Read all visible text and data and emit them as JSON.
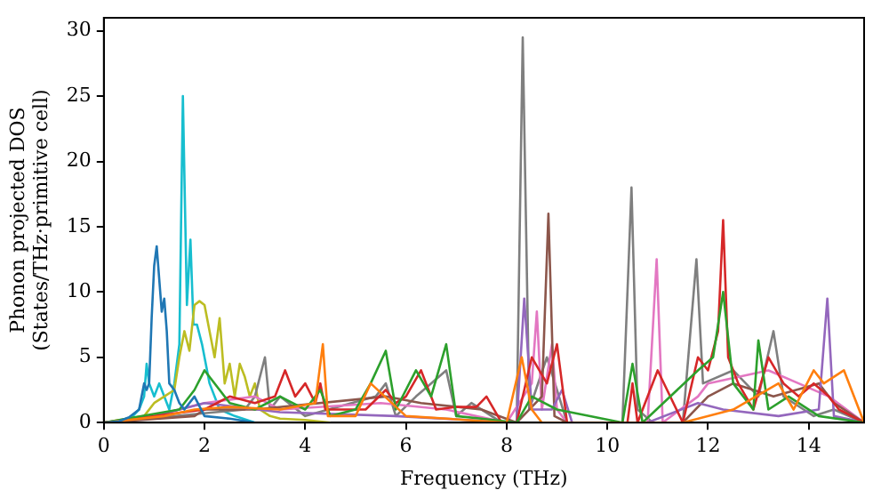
{
  "chart_data": {
    "type": "line",
    "xlabel": "Frequency (THz)",
    "ylabel": "Phonon projected DOS\n(States/THz·primitive cell)",
    "xlim": [
      0,
      15.1
    ],
    "xticks": [
      0,
      2,
      4,
      6,
      8,
      10,
      12,
      14
    ],
    "ylim": [
      0,
      31
    ],
    "yticks": [
      0,
      5,
      10,
      15,
      20,
      25,
      30
    ],
    "grid": false,
    "legend": false,
    "marker": "none",
    "line_style": "solid",
    "series": [
      {
        "color": "#1f77b4",
        "x": [
          0,
          0.3,
          0.5,
          0.7,
          0.8,
          0.85,
          0.9,
          0.95,
          1.0,
          1.05,
          1.1,
          1.15,
          1.2,
          1.25,
          1.3,
          1.4,
          1.5,
          1.6,
          1.8,
          2.0,
          2.5,
          3.0
        ],
        "values": [
          0,
          0.1,
          0.4,
          1,
          3,
          2.5,
          3,
          8,
          12,
          13.5,
          11,
          8.5,
          9.5,
          7,
          3,
          2.5,
          1.5,
          1,
          2,
          0.5,
          0.3,
          0
        ]
      },
      {
        "color": "#ff7f0e",
        "x": [
          0,
          1.2,
          1.8,
          2.5,
          3.5,
          4.2,
          4.35,
          4.45,
          5,
          5.3,
          6,
          8,
          8.3,
          8.5,
          8.7,
          11.5,
          12.5,
          13.4,
          13.7,
          14.1,
          14.3,
          14.7,
          15.1
        ],
        "values": [
          0,
          0.5,
          1,
          1.2,
          1,
          1.5,
          6,
          0.5,
          0.5,
          3,
          0.5,
          0,
          5,
          1,
          0,
          0,
          1,
          3,
          1,
          4,
          3,
          4,
          0
        ]
      },
      {
        "color": "#2ca02c",
        "x": [
          0,
          1.5,
          1.8,
          2.0,
          2.5,
          3.0,
          3.5,
          4,
          4.3,
          4.5,
          5.0,
          5.3,
          5.6,
          5.8,
          6.2,
          6.5,
          6.8,
          7.0,
          7.5,
          8.2,
          8.5,
          9.0,
          10.3,
          10.5,
          10.7,
          11.8,
          12.1,
          12.3,
          12.5,
          12.9,
          13.0,
          13.2,
          13.6,
          14.2,
          15.1
        ],
        "values": [
          0,
          1,
          2.5,
          4,
          1.5,
          1,
          2,
          1,
          2.5,
          0.5,
          1,
          3,
          5.5,
          1,
          4,
          2,
          6,
          0.5,
          0.3,
          0,
          2,
          1,
          0,
          4.5,
          0,
          4,
          5,
          10,
          3,
          1,
          6.3,
          1,
          2,
          0.5,
          0
        ]
      },
      {
        "color": "#d62728",
        "x": [
          0,
          2.0,
          2.5,
          3.0,
          3.4,
          3.6,
          3.8,
          4.0,
          4.2,
          4.3,
          4.4,
          4.6,
          5.0,
          5.2,
          5.6,
          5.8,
          6.0,
          6.3,
          6.6,
          7.0,
          7.4,
          7.6,
          7.9,
          8.2,
          8.5,
          8.8,
          9.0,
          9.2,
          10.4,
          10.5,
          10.6,
          11.0,
          11.5,
          11.8,
          12.0,
          12.2,
          12.3,
          12.4,
          12.6,
          12.9,
          13.2,
          13.5,
          13.8,
          14.1,
          14.4,
          14.6,
          15.1
        ],
        "values": [
          0,
          1,
          2,
          1.5,
          2,
          4,
          2,
          3,
          1.5,
          3,
          1,
          1,
          1,
          1,
          2.5,
          1.5,
          2,
          4,
          1,
          1.2,
          1.2,
          2,
          0,
          0,
          5,
          3,
          6,
          0,
          0,
          3,
          0,
          4,
          0,
          5,
          4,
          7,
          15.5,
          5,
          3,
          1,
          5,
          3,
          2,
          3,
          2,
          1,
          0
        ]
      },
      {
        "color": "#9467bd",
        "x": [
          0,
          1.0,
          2.0,
          3.5,
          5.8,
          8.2,
          8.35,
          8.5,
          8.9,
          9.1,
          9.3,
          10.8,
          11.8,
          12.3,
          13.4,
          14.2,
          14.37,
          14.5,
          15.1
        ],
        "values": [
          0,
          0.5,
          1.5,
          0.8,
          0.5,
          0,
          9.5,
          1,
          1,
          2.5,
          0,
          0,
          1.5,
          1,
          0.5,
          1,
          9.5,
          0.5,
          0
        ]
      },
      {
        "color": "#8c564b",
        "x": [
          0,
          1.8,
          2,
          3,
          5.6,
          6.3,
          7.5,
          8.2,
          8.7,
          8.83,
          8.95,
          9.2,
          11.5,
          12,
          12.5,
          13.3,
          14.2,
          14.5,
          15.1
        ],
        "values": [
          0,
          0.5,
          1,
          1,
          2,
          1.5,
          1,
          0,
          2,
          16,
          0.5,
          0,
          0,
          2,
          3,
          2,
          3,
          1.5,
          0
        ]
      },
      {
        "color": "#e377c2",
        "x": [
          0,
          1,
          1.5,
          2,
          3,
          3.5,
          5.5,
          6.8,
          8.0,
          8.5,
          8.6,
          8.7,
          8.9,
          9.0,
          9.2,
          10.8,
          10.98,
          11.1,
          11.8,
          12,
          13.2,
          13.8,
          14.4,
          15.1
        ],
        "values": [
          0,
          0.5,
          1,
          1.5,
          2,
          1,
          1.5,
          1,
          0,
          3,
          8.5,
          1,
          6,
          1,
          0,
          0,
          12.5,
          0,
          2,
          3,
          4,
          3,
          2,
          0
        ]
      },
      {
        "color": "#7f7f7f",
        "x": [
          0,
          2.8,
          3.0,
          3.2,
          3.3,
          3.5,
          4,
          5.4,
          5.6,
          5.8,
          6.2,
          6.5,
          6.8,
          7.0,
          7.3,
          7.9,
          8.2,
          8.32,
          8.45,
          8.8,
          9.2,
          10.3,
          10.48,
          10.6,
          10.9,
          11.5,
          11.77,
          11.9,
          12.5,
          13.0,
          13.3,
          13.5,
          13.9,
          14.1,
          14.5,
          15.1
        ],
        "values": [
          0,
          1,
          2,
          5,
          1,
          2,
          0.5,
          2,
          3,
          0.5,
          2,
          3,
          4,
          0.5,
          1.5,
          0,
          0,
          29.5,
          1,
          5,
          0,
          0,
          18,
          1,
          0,
          0,
          12.5,
          3,
          4,
          2,
          7,
          2,
          1,
          0.5,
          1,
          0
        ]
      },
      {
        "color": "#bcbd22",
        "x": [
          0,
          0.8,
          1.0,
          1.2,
          1.4,
          1.5,
          1.6,
          1.7,
          1.8,
          1.9,
          2.0,
          2.1,
          2.2,
          2.3,
          2.4,
          2.5,
          2.6,
          2.7,
          2.8,
          2.9,
          3.0,
          3.1,
          3.3,
          3.5,
          4,
          4.5
        ],
        "values": [
          0,
          0.5,
          1.5,
          2,
          2.5,
          5,
          7,
          5.5,
          9,
          9.3,
          9,
          7,
          5,
          8,
          3,
          4.5,
          2,
          4.5,
          3.5,
          2,
          3,
          1,
          0.5,
          0.3,
          0.2,
          0
        ]
      },
      {
        "color": "#17becf",
        "x": [
          0,
          0.5,
          0.7,
          0.8,
          0.85,
          0.9,
          1.0,
          1.1,
          1.2,
          1.3,
          1.4,
          1.5,
          1.57,
          1.65,
          1.72,
          1.78,
          1.85,
          1.95,
          2.1,
          2.3,
          2.6,
          3
        ],
        "values": [
          0,
          0.2,
          1,
          2,
          4.5,
          3,
          2,
          3,
          2,
          1,
          3,
          6,
          25,
          9,
          14,
          7.5,
          7.5,
          6,
          3,
          1,
          0.5,
          0
        ]
      }
    ]
  }
}
